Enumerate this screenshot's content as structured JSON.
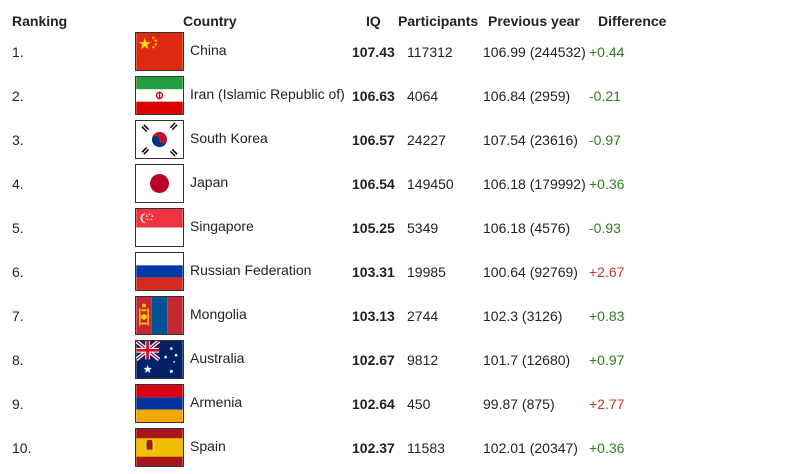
{
  "headers": {
    "ranking": "Ranking",
    "country": "Country",
    "iq": "IQ",
    "participants": "Participants",
    "previous_year": "Previous year",
    "difference": "Difference"
  },
  "colors": {
    "positive": "#2e7d1e",
    "negative": "#c0392b"
  },
  "rows": [
    {
      "rank": "1.",
      "country": "China",
      "iq": "107.43",
      "participants": "117312",
      "previous": "106.99 (244532)",
      "diff": "+0.44",
      "diff_color": "positive",
      "flag": "china-flag-icon"
    },
    {
      "rank": "2.",
      "country": "Iran (Islamic Republic of)",
      "iq": "106.63",
      "participants": "4064",
      "previous": "106.84 (2959)",
      "diff": "-0.21",
      "diff_color": "positive",
      "flag": "iran-flag-icon"
    },
    {
      "rank": "3.",
      "country": "South Korea",
      "iq": "106.57",
      "participants": "24227",
      "previous": "107.54 (23616)",
      "diff": "-0.97",
      "diff_color": "positive",
      "flag": "south-korea-flag-icon"
    },
    {
      "rank": "4.",
      "country": "Japan",
      "iq": "106.54",
      "participants": "149450",
      "previous": "106.18 (179992)",
      "diff": "+0.36",
      "diff_color": "positive",
      "flag": "japan-flag-icon"
    },
    {
      "rank": "5.",
      "country": "Singapore",
      "iq": "105.25",
      "participants": "5349",
      "previous": "106.18 (4576)",
      "diff": "-0.93",
      "diff_color": "positive",
      "flag": "singapore-flag-icon"
    },
    {
      "rank": "6.",
      "country": "Russian Federation",
      "iq": "103.31",
      "participants": "19985",
      "previous": "100.64 (92769)",
      "diff": "+2.67",
      "diff_color": "negative",
      "flag": "russia-flag-icon"
    },
    {
      "rank": "7.",
      "country": "Mongolia",
      "iq": "103.13",
      "participants": "2744",
      "previous": "102.3 (3126)",
      "diff": "+0.83",
      "diff_color": "positive",
      "flag": "mongolia-flag-icon"
    },
    {
      "rank": "8.",
      "country": "Australia",
      "iq": "102.67",
      "participants": "9812",
      "previous": "101.7 (12680)",
      "diff": "+0.97",
      "diff_color": "positive",
      "flag": "australia-flag-icon"
    },
    {
      "rank": "9.",
      "country": "Armenia",
      "iq": "102.64",
      "participants": "450",
      "previous": "99.87 (875)",
      "diff": "+2.77",
      "diff_color": "negative",
      "flag": "armenia-flag-icon"
    },
    {
      "rank": "10.",
      "country": "Spain",
      "iq": "102.37",
      "participants": "11583",
      "previous": "102.01 (20347)",
      "diff": "+0.36",
      "diff_color": "positive",
      "flag": "spain-flag-icon"
    }
  ]
}
